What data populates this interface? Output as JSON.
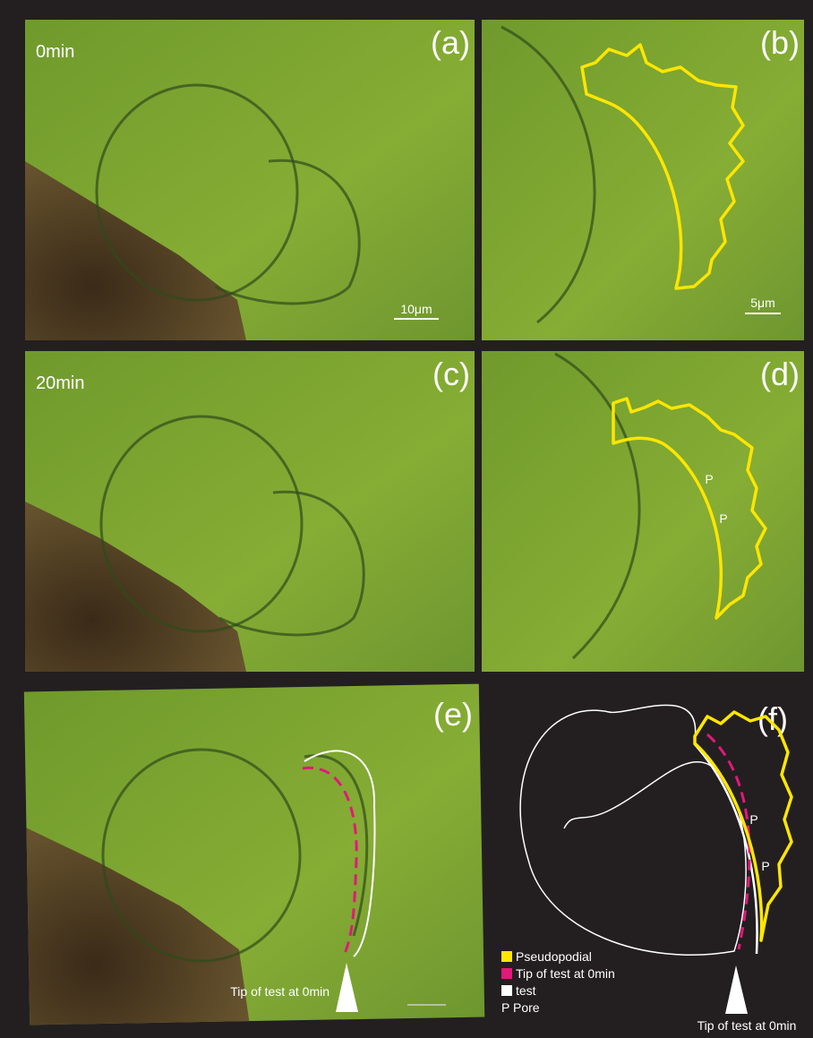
{
  "panels": [
    {
      "label": "(a)",
      "time": "0min",
      "scale_bar": "10μm"
    },
    {
      "label": "(b)",
      "scale_bar": "5μm"
    },
    {
      "label": "(c)",
      "time": "20min"
    },
    {
      "label": "(d)",
      "pores": [
        "P",
        "P"
      ]
    },
    {
      "label": "(e)",
      "annotation": "Tip of test at 0min"
    },
    {
      "label": "(f)",
      "pores": [
        "P",
        "P"
      ],
      "annotation": "Tip of test at 0min"
    }
  ],
  "legend": [
    "Pseudopodial",
    "Tip of test at 0min",
    "test",
    "P Pore"
  ]
}
